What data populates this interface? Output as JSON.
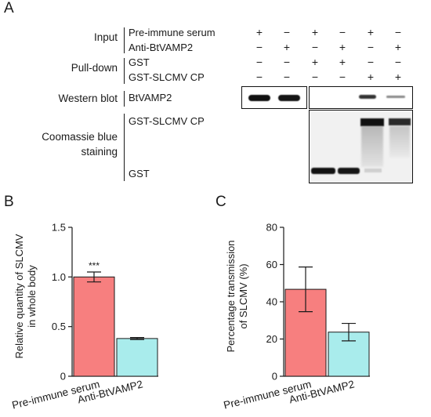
{
  "panel_a": {
    "letter": "A",
    "group_labels": {
      "input": "Input",
      "pulldown": "Pull-down",
      "western": "Western blot",
      "coomassie_line1": "Coomassie blue",
      "coomassie_line2": "staining"
    },
    "rows": [
      {
        "label": "Pre-immune serum",
        "signs": [
          "+",
          "−",
          "+",
          "−",
          "+",
          "−"
        ]
      },
      {
        "label": "Anti-BtVAMP2",
        "signs": [
          "−",
          "+",
          "−",
          "+",
          "−",
          "+"
        ]
      },
      {
        "label": "GST",
        "signs": [
          "−",
          "−",
          "+",
          "+",
          "−",
          "−"
        ]
      },
      {
        "label": "GST-SLCMV CP",
        "signs": [
          "−",
          "−",
          "−",
          "−",
          "+",
          "+"
        ]
      }
    ],
    "western_label": "BtVAMP2",
    "coomassie_top_label": "GST-SLCMV CP",
    "coomassie_bottom_label": "GST",
    "western_band_intensity": [
      1.0,
      0.95,
      0.0,
      0.0,
      0.6,
      0.3
    ]
  },
  "panel_b": {
    "letter": "B",
    "significance": "***",
    "chart_data": {
      "type": "bar",
      "categories": [
        "Pre-immune serum",
        "Anti-BtVAMP2"
      ],
      "values": [
        1.0,
        0.38
      ],
      "errors": [
        0.05,
        0.01
      ],
      "ylabel_line1": "Relative quantity of SLCMV",
      "ylabel_line2": "in whole body",
      "ylim": [
        0,
        1.5
      ],
      "yticks": [
        "0",
        "0.5",
        "1.0",
        "1.5"
      ],
      "colors": [
        "#f77f7f",
        "#a9ecec"
      ]
    }
  },
  "panel_c": {
    "letter": "C",
    "chart_data": {
      "type": "bar",
      "categories": [
        "Pre-immune serum",
        "Anti-BtVAMP2"
      ],
      "values": [
        46.7,
        23.7
      ],
      "errors": [
        12.0,
        4.7
      ],
      "ylabel_line1": "Percentage transmission",
      "ylabel_line2": "of SLCMV (%)",
      "ylim": [
        0,
        80
      ],
      "yticks": [
        "0",
        "20",
        "40",
        "60",
        "80"
      ],
      "colors": [
        "#f77f7f",
        "#a9ecec"
      ]
    }
  }
}
